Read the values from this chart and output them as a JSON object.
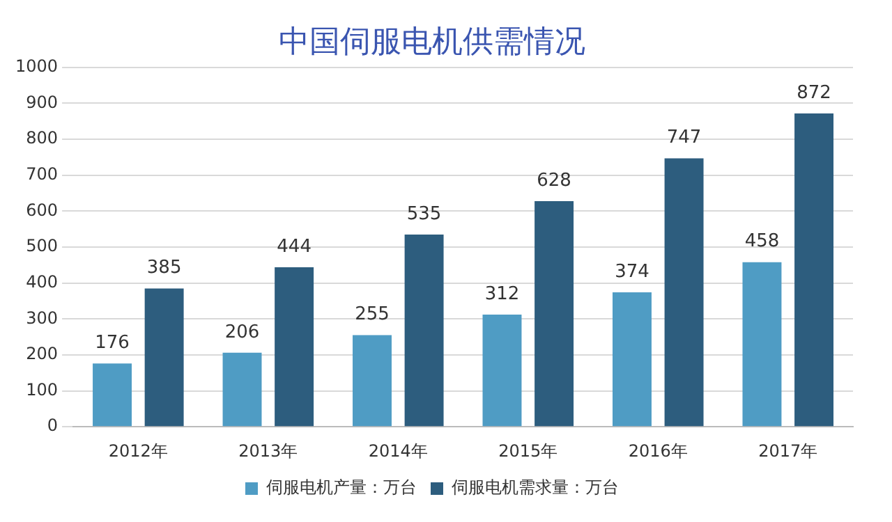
{
  "chart_data": {
    "type": "bar",
    "title": "中国伺服电机供需情况",
    "categories": [
      "2012年",
      "2013年",
      "2014年",
      "2015年",
      "2016年",
      "2017年"
    ],
    "series": [
      {
        "name": "伺服电机产量：万台",
        "color": "#4f9cc4",
        "values": [
          176,
          206,
          255,
          312,
          374,
          458
        ]
      },
      {
        "name": "伺服电机需求量：万台",
        "color": "#2d5d7e",
        "values": [
          385,
          444,
          535,
          628,
          747,
          872
        ]
      }
    ],
    "ylim": [
      0,
      1000
    ],
    "yticks": [
      0,
      100,
      200,
      300,
      400,
      500,
      600,
      700,
      800,
      900,
      1000
    ],
    "grid": "y",
    "legend": "bottom",
    "data_labels": true
  }
}
